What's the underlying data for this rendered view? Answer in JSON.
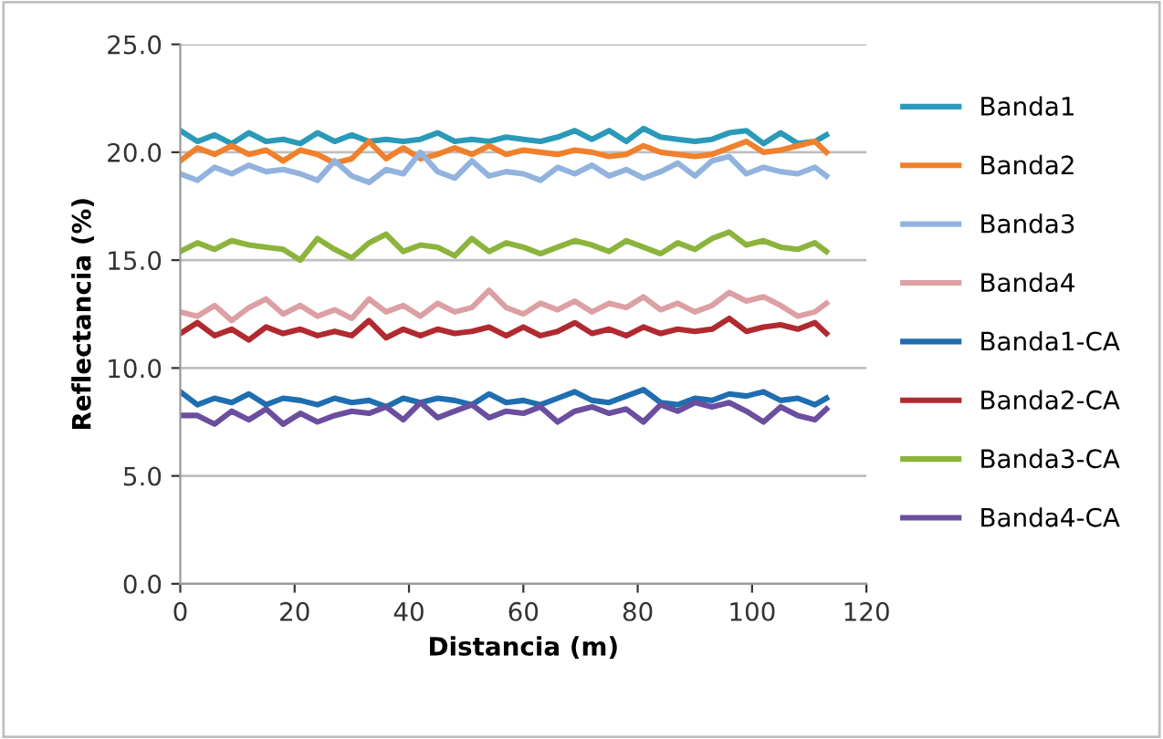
{
  "chart_data": {
    "type": "line",
    "xlabel": "Distancia (m)",
    "ylabel": "Reflectancia (%)",
    "x": [
      0,
      3,
      6,
      9,
      12,
      15,
      18,
      21,
      24,
      27,
      30,
      33,
      36,
      39,
      42,
      45,
      48,
      51,
      54,
      57,
      60,
      63,
      66,
      69,
      72,
      75,
      78,
      81,
      84,
      87,
      90,
      93,
      96,
      99,
      102,
      105,
      108,
      111,
      113
    ],
    "xlim": [
      0,
      120
    ],
    "xticks": [
      0,
      20,
      40,
      60,
      80,
      100,
      120
    ],
    "ylim": [
      0,
      25
    ],
    "yticks": [
      {
        "value": 0,
        "label": "0.0"
      },
      {
        "value": 5,
        "label": "5.0"
      },
      {
        "value": 10,
        "label": "10.0"
      },
      {
        "value": 15,
        "label": "15.0"
      },
      {
        "value": 20,
        "label": "20.0"
      },
      {
        "value": 25,
        "label": "25.0"
      }
    ],
    "grid": "y",
    "legend": "right",
    "marker": "none",
    "line_style": "solid",
    "series": [
      {
        "name": "Banda1",
        "color": "#2a9ab8",
        "values": [
          21.0,
          20.5,
          20.8,
          20.4,
          20.9,
          20.5,
          20.6,
          20.4,
          20.9,
          20.5,
          20.8,
          20.5,
          20.6,
          20.5,
          20.6,
          20.9,
          20.5,
          20.6,
          20.5,
          20.7,
          20.6,
          20.5,
          20.7,
          21.0,
          20.6,
          21.0,
          20.5,
          21.1,
          20.7,
          20.6,
          20.5,
          20.6,
          20.9,
          21.0,
          20.4,
          20.9,
          20.4,
          20.5,
          20.8
        ]
      },
      {
        "name": "Banda2",
        "color": "#f0802c",
        "values": [
          19.6,
          20.2,
          19.9,
          20.3,
          19.9,
          20.1,
          19.6,
          20.1,
          19.9,
          19.5,
          19.7,
          20.5,
          19.7,
          20.2,
          19.7,
          19.9,
          20.2,
          19.9,
          20.3,
          19.9,
          20.1,
          20.0,
          19.9,
          20.1,
          20.0,
          19.8,
          19.9,
          20.3,
          20.0,
          19.9,
          19.8,
          19.9,
          20.2,
          20.5,
          20.0,
          20.1,
          20.3,
          20.5,
          20.0
        ]
      },
      {
        "name": "Banda3",
        "color": "#92b3dd",
        "values": [
          19.0,
          18.7,
          19.3,
          19.0,
          19.4,
          19.1,
          19.2,
          19.0,
          18.7,
          19.6,
          18.9,
          18.6,
          19.2,
          19.0,
          20.0,
          19.1,
          18.8,
          19.6,
          18.9,
          19.1,
          19.0,
          18.7,
          19.3,
          19.0,
          19.4,
          18.9,
          19.2,
          18.8,
          19.1,
          19.5,
          18.9,
          19.6,
          19.8,
          19.0,
          19.3,
          19.1,
          19.0,
          19.3,
          18.9
        ]
      },
      {
        "name": "Banda4",
        "color": "#dca0a4",
        "values": [
          12.6,
          12.4,
          12.9,
          12.2,
          12.8,
          13.2,
          12.5,
          12.9,
          12.4,
          12.7,
          12.3,
          13.2,
          12.6,
          12.9,
          12.4,
          13.0,
          12.6,
          12.8,
          13.6,
          12.8,
          12.5,
          13.0,
          12.7,
          13.1,
          12.6,
          13.0,
          12.8,
          13.3,
          12.7,
          13.0,
          12.6,
          12.9,
          13.5,
          13.1,
          13.3,
          12.9,
          12.4,
          12.6,
          13.0
        ]
      },
      {
        "name": "Banda1-CA",
        "color": "#1f6eb0",
        "values": [
          8.9,
          8.3,
          8.6,
          8.4,
          8.8,
          8.3,
          8.6,
          8.5,
          8.3,
          8.6,
          8.4,
          8.5,
          8.2,
          8.6,
          8.4,
          8.6,
          8.5,
          8.3,
          8.8,
          8.4,
          8.5,
          8.3,
          8.6,
          8.9,
          8.5,
          8.4,
          8.7,
          9.0,
          8.4,
          8.3,
          8.6,
          8.5,
          8.8,
          8.7,
          8.9,
          8.5,
          8.6,
          8.3,
          8.6
        ]
      },
      {
        "name": "Banda2-CA",
        "color": "#b02a30",
        "values": [
          11.6,
          12.1,
          11.5,
          11.8,
          11.3,
          11.9,
          11.6,
          11.8,
          11.5,
          11.7,
          11.5,
          12.2,
          11.4,
          11.8,
          11.5,
          11.8,
          11.6,
          11.7,
          11.9,
          11.5,
          11.9,
          11.5,
          11.7,
          12.1,
          11.6,
          11.8,
          11.5,
          11.9,
          11.6,
          11.8,
          11.7,
          11.8,
          12.3,
          11.7,
          11.9,
          12.0,
          11.8,
          12.1,
          11.6
        ]
      },
      {
        "name": "Banda3-CA",
        "color": "#8cb43c",
        "values": [
          15.4,
          15.8,
          15.5,
          15.9,
          15.7,
          15.6,
          15.5,
          15.0,
          16.0,
          15.5,
          15.1,
          15.8,
          16.2,
          15.4,
          15.7,
          15.6,
          15.2,
          16.0,
          15.4,
          15.8,
          15.6,
          15.3,
          15.6,
          15.9,
          15.7,
          15.4,
          15.9,
          15.6,
          15.3,
          15.8,
          15.5,
          16.0,
          16.3,
          15.7,
          15.9,
          15.6,
          15.5,
          15.8,
          15.4
        ]
      },
      {
        "name": "Banda4-CA",
        "color": "#6b4e9e",
        "values": [
          7.8,
          7.8,
          7.4,
          8.0,
          7.6,
          8.1,
          7.4,
          7.9,
          7.5,
          7.8,
          8.0,
          7.9,
          8.2,
          7.6,
          8.4,
          7.7,
          8.0,
          8.3,
          7.7,
          8.0,
          7.9,
          8.2,
          7.5,
          8.0,
          8.2,
          7.9,
          8.1,
          7.5,
          8.3,
          8.0,
          8.4,
          8.2,
          8.4,
          8.0,
          7.5,
          8.2,
          7.8,
          7.6,
          8.1
        ]
      }
    ]
  }
}
